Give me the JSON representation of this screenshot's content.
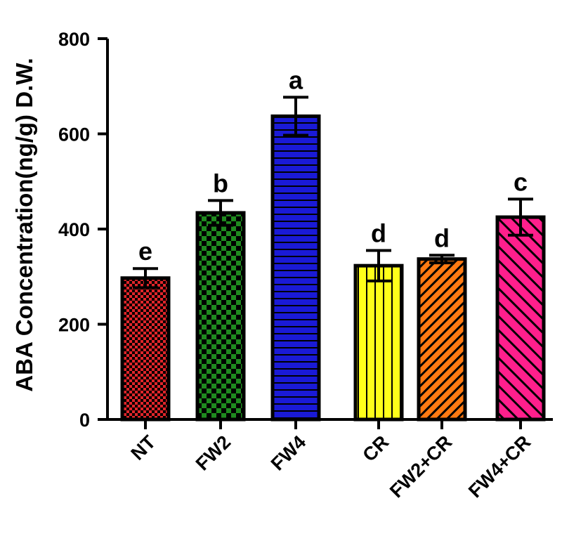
{
  "chart_data": {
    "type": "bar",
    "title": "",
    "xlabel": "",
    "ylabel": "ABA Concentration(ng/g) D.W.",
    "ylim": [
      0,
      800
    ],
    "yticks": [
      0,
      200,
      400,
      600,
      800
    ],
    "grid": false,
    "categories": [
      "NT",
      "FW2",
      "FW4",
      "CR",
      "FW2+CR",
      "FW4+CR"
    ],
    "values": [
      297,
      434,
      637,
      323,
      337,
      425
    ],
    "errors": [
      20,
      26,
      40,
      32,
      8,
      38
    ],
    "significance": [
      "e",
      "b",
      "a",
      "d",
      "d",
      "c"
    ],
    "colors": [
      "#e0252a",
      "#1f8a1f",
      "#1a1ad6",
      "#ffff1a",
      "#ff7a12",
      "#ff1f8c"
    ],
    "patterns": [
      "checker-small",
      "checker-large",
      "horizontal-lines",
      "vertical-lines",
      "diagonal-lines",
      "diagonal-lines-wide"
    ]
  }
}
